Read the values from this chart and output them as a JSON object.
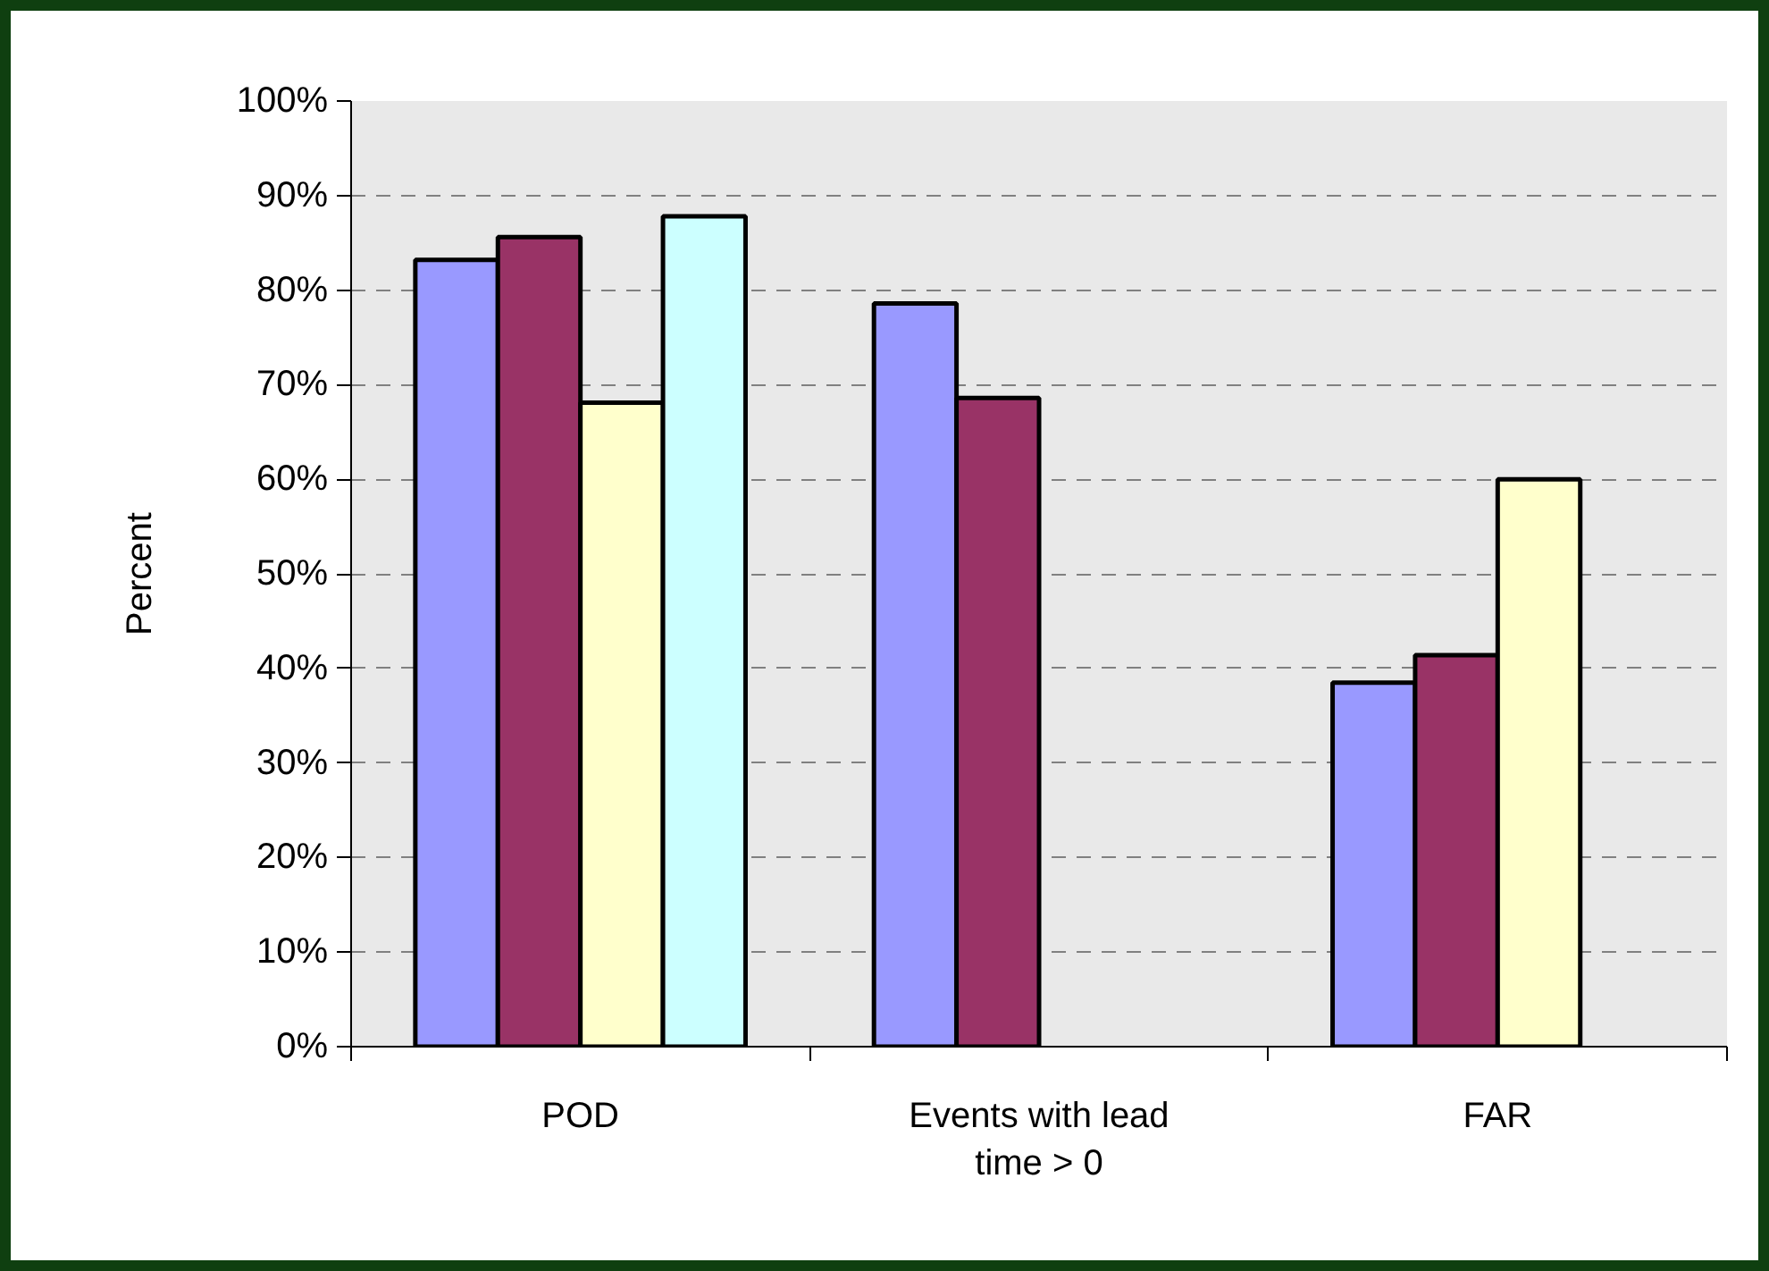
{
  "chart_data": {
    "type": "bar",
    "ylabel": "Percent",
    "categories": [
      "POD",
      "Events with lead time > 0",
      "FAR"
    ],
    "series": [
      {
        "color": "#9999ff",
        "values": [
          83.2,
          78.6,
          38.5
        ]
      },
      {
        "color": "#993366",
        "values": [
          85.6,
          68.6,
          41.4
        ]
      },
      {
        "color": "#ffffcc",
        "values": [
          68.1,
          null,
          60
        ]
      },
      {
        "color": "#ccffff",
        "values": [
          87.8,
          null,
          null
        ]
      }
    ],
    "ylim": [
      0,
      100
    ],
    "yticks": [
      {
        "value": 0,
        "label": "0%"
      },
      {
        "value": 10,
        "label": "10%"
      },
      {
        "value": 20,
        "label": "20%"
      },
      {
        "value": 30,
        "label": "30%"
      },
      {
        "value": 40,
        "label": "40%"
      },
      {
        "value": 50,
        "label": "50%"
      },
      {
        "value": 60,
        "label": "60%"
      },
      {
        "value": 70,
        "label": "70%"
      },
      {
        "value": 80,
        "label": "80%"
      },
      {
        "value": 90,
        "label": "90%"
      },
      {
        "value": 100,
        "label": "100%"
      }
    ],
    "grid": "y"
  }
}
